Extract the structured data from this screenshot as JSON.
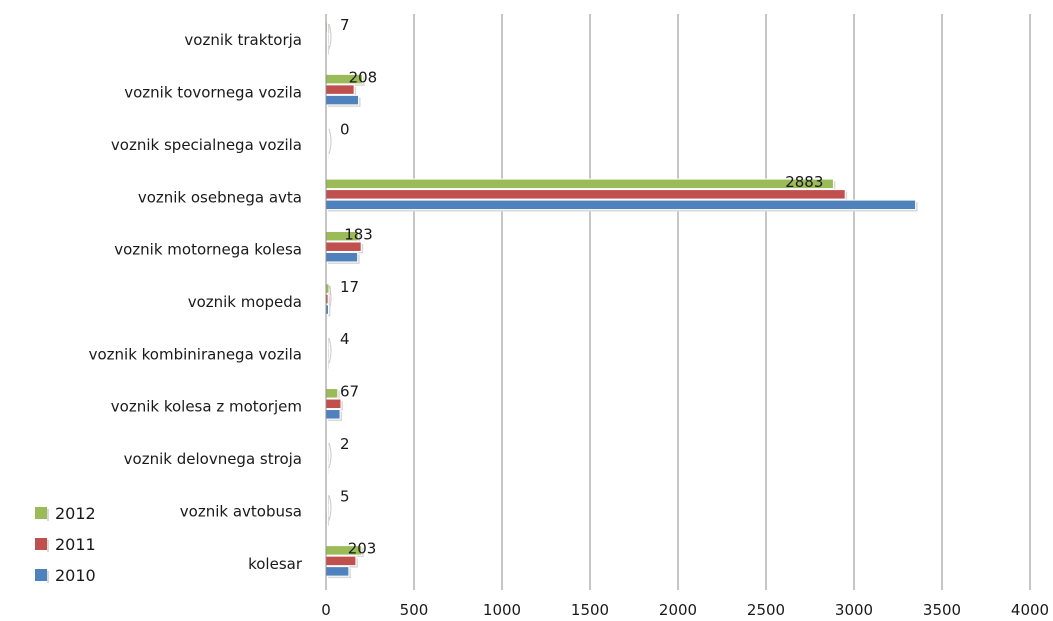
{
  "chart_data": {
    "type": "bar",
    "orientation": "horizontal",
    "categories": [
      "voznik traktorja",
      "voznik tovornega vozila",
      "voznik specialnega vozila",
      "voznik osebnega avta",
      "voznik motornega kolesa",
      "voznik mopeda",
      "voznik kombiniranega vozila",
      "voznik kolesa z motorjem",
      "voznik delovnega stroja",
      "voznik avtobusa",
      "kolesar"
    ],
    "series": [
      {
        "name": "2012",
        "color": "#9BBB59",
        "values": [
          7,
          208,
          0,
          2883,
          183,
          17,
          4,
          67,
          2,
          5,
          203
        ]
      },
      {
        "name": "2011",
        "color": "#C0504D",
        "values": [
          5,
          160,
          1,
          2950,
          200,
          12,
          5,
          85,
          3,
          4,
          170
        ]
      },
      {
        "name": "2010",
        "color": "#4F81BD",
        "values": [
          6,
          185,
          1,
          3350,
          180,
          14,
          4,
          80,
          2,
          6,
          130
        ]
      }
    ],
    "data_labels_series": "2012",
    "xlim": [
      0,
      4000
    ],
    "xticks": [
      0,
      500,
      1000,
      1500,
      2000,
      2500,
      3000,
      3500,
      4000
    ],
    "grid": "vertical",
    "legend": {
      "placement": "bottom-left",
      "order": [
        "2012",
        "2011",
        "2010"
      ]
    },
    "title": "",
    "xlabel": "",
    "ylabel": ""
  }
}
